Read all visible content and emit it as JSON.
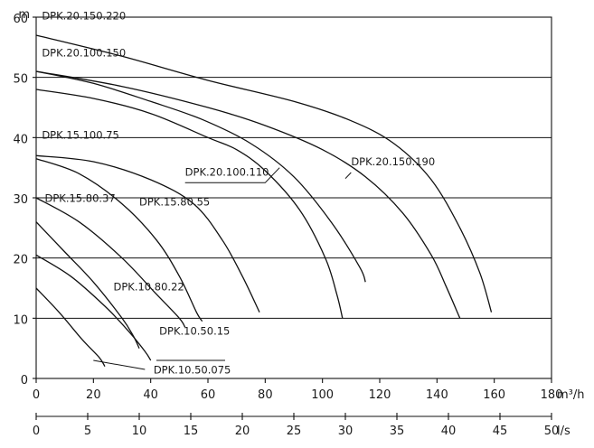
{
  "chart_data": {
    "type": "line",
    "title": "",
    "ylabel": "m",
    "xlabel": "m³/h",
    "x2label": "l/s",
    "ylim": [
      0,
      60
    ],
    "xlim": [
      0,
      180
    ],
    "grid": "horizontal",
    "y_ticks": [
      "0",
      "10",
      "20",
      "30",
      "40",
      "50",
      "60"
    ],
    "x_ticks": [
      "0",
      "20",
      "40",
      "60",
      "80",
      "100",
      "120",
      "140",
      "160",
      "180"
    ],
    "x2_ticks": [
      "0",
      "5",
      "10",
      "15",
      "20",
      "25",
      "30",
      "35",
      "40",
      "45",
      "50"
    ],
    "series": [
      {
        "name": "DPK.20.150.220",
        "points": [
          [
            0,
            57
          ],
          [
            30,
            53.5
          ],
          [
            60,
            49.5
          ],
          [
            90,
            46
          ],
          [
            110,
            42.8
          ],
          [
            125,
            39
          ],
          [
            138,
            33
          ],
          [
            148,
            25
          ],
          [
            155,
            17.5
          ],
          [
            159,
            11
          ]
        ],
        "label_at": [
          2,
          59.6
        ],
        "label_anchor": "start"
      },
      {
        "name": "DPK.20.150.190",
        "points": [
          [
            0,
            51
          ],
          [
            30,
            48.5
          ],
          [
            60,
            45
          ],
          [
            80,
            42
          ],
          [
            100,
            38
          ],
          [
            115,
            33.5
          ],
          [
            128,
            27.5
          ],
          [
            138,
            20.5
          ],
          [
            143,
            15.5
          ],
          [
            148,
            10
          ]
        ],
        "label_at": [
          110,
          35.4
        ],
        "label_anchor": "start",
        "leader": [
          [
            110,
            34.2
          ],
          [
            108,
            33.2
          ]
        ]
      },
      {
        "name": "DPK.20.100.150",
        "points": [
          [
            0,
            51
          ],
          [
            20,
            49
          ],
          [
            40,
            46
          ],
          [
            58,
            43
          ],
          [
            75,
            39
          ],
          [
            90,
            33.5
          ],
          [
            103,
            26
          ],
          [
            113,
            18.5
          ],
          [
            115,
            16
          ]
        ],
        "label_at": [
          2,
          53.5
        ],
        "label_anchor": "start"
      },
      {
        "name": "DPK.20.100.110",
        "points": [
          [
            0,
            48
          ],
          [
            20,
            46.5
          ],
          [
            40,
            44
          ],
          [
            60,
            40
          ],
          [
            70,
            38
          ],
          [
            80,
            34.5
          ],
          [
            92,
            28
          ],
          [
            101,
            20
          ],
          [
            105,
            14
          ],
          [
            107,
            10
          ]
        ],
        "label_at": [
          52,
          33.7
        ],
        "label_anchor": "start",
        "leader": [
          [
            52,
            32.5
          ],
          [
            80,
            32.5
          ],
          [
            85,
            35
          ]
        ]
      },
      {
        "name": "DPK.15.100.75",
        "points": [
          [
            0,
            37
          ],
          [
            20,
            36
          ],
          [
            40,
            33
          ],
          [
            55,
            29
          ],
          [
            65,
            23
          ],
          [
            72,
            17
          ],
          [
            78,
            11
          ]
        ],
        "label_at": [
          2,
          39.8
        ],
        "label_anchor": "start"
      },
      {
        "name": "DPK.15.80.55",
        "points": [
          [
            0,
            36.5
          ],
          [
            15,
            34
          ],
          [
            30,
            29
          ],
          [
            42,
            23
          ],
          [
            50,
            17
          ],
          [
            56,
            11
          ],
          [
            58,
            9.5
          ]
        ],
        "label_at": [
          36,
          28.7
        ],
        "label_anchor": "start"
      },
      {
        "name": "DPK.15.80.37",
        "points": [
          [
            0,
            30
          ],
          [
            15,
            26
          ],
          [
            30,
            20
          ],
          [
            42,
            14
          ],
          [
            50,
            10
          ],
          [
            52,
            8.5
          ]
        ],
        "label_at": [
          3,
          29.3
        ],
        "label_anchor": "start"
      },
      {
        "name": "DPK.10.80.22",
        "points": [
          [
            0,
            26
          ],
          [
            10,
            21
          ],
          [
            20,
            16
          ],
          [
            30,
            10
          ],
          [
            34,
            7
          ],
          [
            36,
            5
          ]
        ],
        "label_at": [
          27,
          14.6
        ],
        "label_anchor": "start"
      },
      {
        "name": "DPK.10.50.15",
        "points": [
          [
            0,
            20.5
          ],
          [
            12,
            17
          ],
          [
            24,
            12
          ],
          [
            32,
            8
          ],
          [
            38,
            4.5
          ],
          [
            40,
            3
          ]
        ],
        "label_at": [
          43,
          7.3
        ],
        "label_anchor": "start",
        "leader": [
          [
            42,
            3
          ],
          [
            66,
            3
          ]
        ]
      },
      {
        "name": "DPK.10.50.075",
        "points": [
          [
            0,
            15
          ],
          [
            8,
            11
          ],
          [
            16,
            6.5
          ],
          [
            22,
            3.5
          ],
          [
            24,
            2
          ]
        ],
        "label_at": [
          41,
          0.8
        ],
        "label_anchor": "start",
        "leader": [
          [
            20,
            3
          ],
          [
            38,
            1.5
          ]
        ]
      }
    ]
  }
}
